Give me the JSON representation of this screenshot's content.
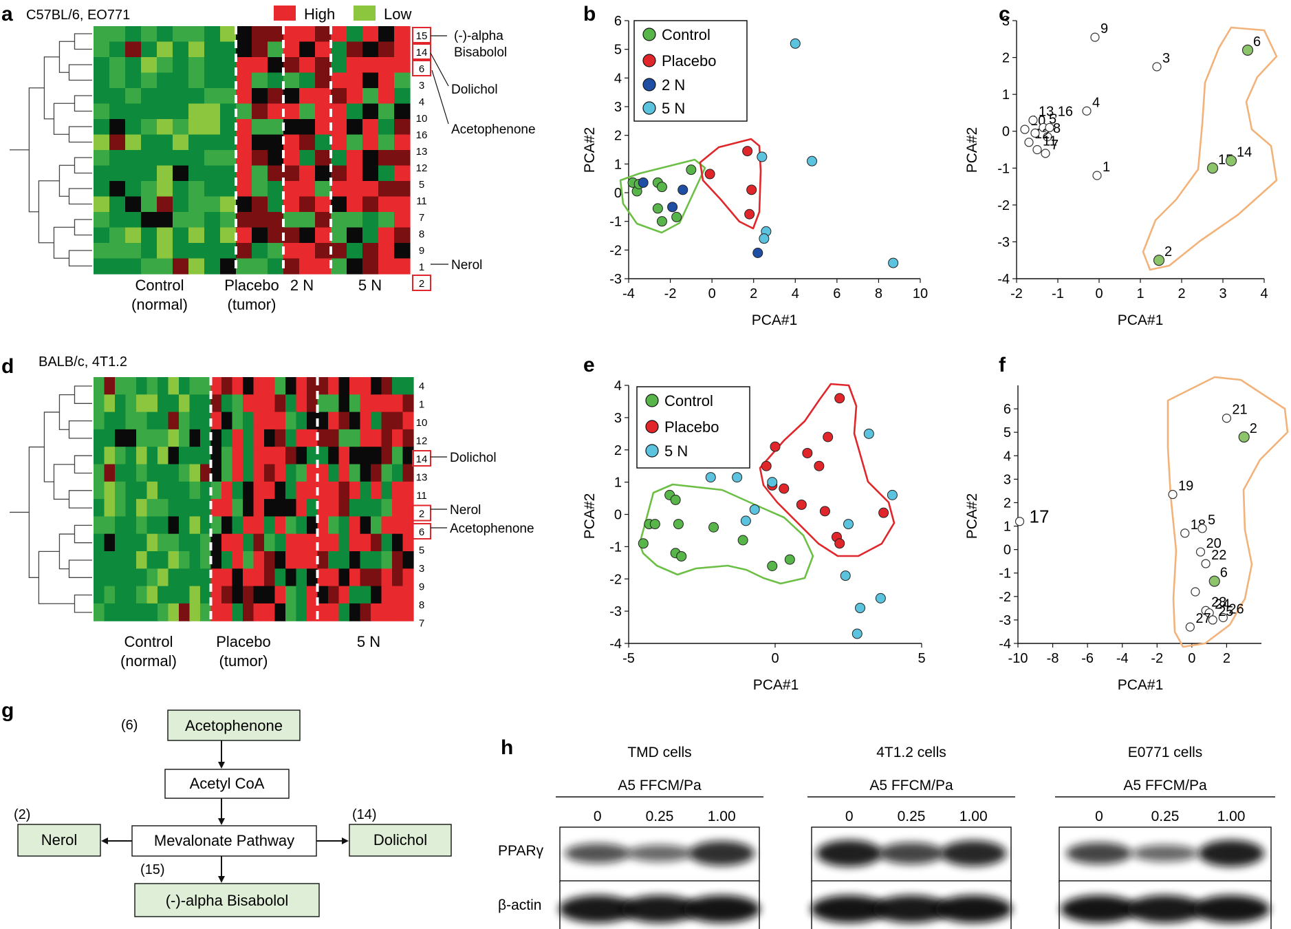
{
  "colors": {
    "high": "#e8292d",
    "low": "#8cc63f",
    "dark_green": "#0e8a3c",
    "mid_green": "#3aa845",
    "dark_red": "#7a1012",
    "black": "#0a0a0a",
    "control": "#58b54a",
    "placebo": "#e0262a",
    "n2": "#1e4fa5",
    "n5": "#5cc3df",
    "control_hull": "#6cbf45",
    "placebo_hull": "#e0262a",
    "orange_hull": "#f2b27a",
    "marked_point": "#8cc46a",
    "box_fill": "#dfeed6"
  },
  "panels": {
    "a": {
      "label": "a",
      "title": "C57BL/6, EO771",
      "legend_high": "High",
      "legend_low": "Low",
      "row_labels": [
        "15",
        "14",
        "6",
        "3",
        "4",
        "10",
        "16",
        "13",
        "12",
        "5",
        "11",
        "7",
        "8",
        "9",
        "1",
        "2"
      ],
      "boxed_rows": [
        "15",
        "14",
        "6",
        "2"
      ],
      "callouts": [
        "(-)-alpha",
        "Bisabolol",
        "Dolichol",
        "Acetophenone",
        "Nerol"
      ],
      "groups": [
        {
          "line1": "Control",
          "line2": "(normal)"
        },
        {
          "line1": "Placebo",
          "line2": "(tumor)"
        },
        {
          "line1": "2 N",
          "line2": ""
        },
        {
          "line1": "5 N",
          "line2": ""
        }
      ]
    },
    "b": {
      "label": "b",
      "legend": [
        "Control",
        "Placebo",
        "2 N",
        "5 N"
      ]
    },
    "c": {
      "label": "c"
    },
    "d": {
      "label": "d",
      "title": "BALB/c, 4T1.2",
      "row_labels": [
        "4",
        "1",
        "10",
        "12",
        "14",
        "13",
        "11",
        "2",
        "6",
        "5",
        "3",
        "9",
        "8",
        "7"
      ],
      "boxed_rows": [
        "14",
        "2",
        "6"
      ],
      "callouts": [
        "Dolichol",
        "Nerol",
        "Acetophenone"
      ],
      "groups": [
        {
          "line1": "Control",
          "line2": "(normal)"
        },
        {
          "line1": "Placebo",
          "line2": "(tumor)"
        },
        {
          "line1": "5 N",
          "line2": ""
        }
      ]
    },
    "e": {
      "label": "e",
      "legend": [
        "Control",
        "Placebo",
        "5 N"
      ]
    },
    "f": {
      "label": "f"
    },
    "g": {
      "label": "g",
      "nodes": {
        "acetophenone": "Acetophenone",
        "acetyl_coa": "Acetyl CoA",
        "mevalonate": "Mevalonate Pathway",
        "nerol": "Nerol",
        "dolichol": "Dolichol",
        "bisabolol": "(-)-alpha Bisabolol"
      },
      "numbers": {
        "acetophenone": "(6)",
        "nerol": "(2)",
        "dolichol": "(14)",
        "bisabolol": "(15)"
      }
    },
    "h": {
      "label": "h",
      "treatment": "A5 FFCM/Pa",
      "doses": [
        "0",
        "0.25",
        "1.00"
      ],
      "blots": [
        {
          "cell": "TMD cells",
          "ppar": [
            0.6,
            0.45,
            0.85
          ],
          "actin": [
            0.95,
            0.95,
            0.97
          ]
        },
        {
          "cell": "4T1.2 cells",
          "ppar": [
            0.95,
            0.7,
            0.9
          ],
          "actin": [
            0.97,
            0.95,
            0.97
          ]
        },
        {
          "cell": "E0771 cells",
          "ppar": [
            0.7,
            0.45,
            0.95
          ],
          "actin": [
            0.97,
            0.95,
            0.97
          ]
        }
      ],
      "row_labels": [
        "PPARγ",
        "β-actin"
      ]
    }
  },
  "chart_data": [
    {
      "panel": "a",
      "type": "heatmap",
      "title": "C57BL/6, EO771",
      "rows": [
        "15",
        "14",
        "6",
        "3",
        "4",
        "10",
        "16",
        "13",
        "12",
        "5",
        "11",
        "7",
        "8",
        "9",
        "1",
        "2"
      ],
      "group_columns": {
        "Control (normal)": 9,
        "Placebo (tumor)": 3,
        "2 N": 3,
        "5 N": 5
      },
      "scale": [
        "High",
        "Low"
      ]
    },
    {
      "panel": "b",
      "type": "scatter",
      "xlabel": "PCA#1",
      "ylabel": "PCA#2",
      "xlim": [
        -4,
        10
      ],
      "ylim": [
        -3,
        6
      ],
      "xticks": [
        -4,
        -2,
        0,
        2,
        4,
        6,
        8,
        10
      ],
      "yticks": [
        -3,
        -2,
        -1,
        0,
        1,
        2,
        3,
        4,
        5,
        6
      ],
      "series": [
        {
          "name": "Control",
          "points": [
            [
              -3.8,
              0.35
            ],
            [
              -3.6,
              0.05
            ],
            [
              -3.5,
              0.3
            ],
            [
              -2.6,
              0.35
            ],
            [
              -2.4,
              0.2
            ],
            [
              -2.6,
              -0.55
            ],
            [
              -2.4,
              -1.0
            ],
            [
              -1.7,
              -0.85
            ],
            [
              -1.0,
              0.8
            ]
          ]
        },
        {
          "name": "Placebo",
          "points": [
            [
              -0.1,
              0.65
            ],
            [
              1.7,
              1.45
            ],
            [
              1.9,
              0.1
            ],
            [
              1.8,
              -0.75
            ]
          ]
        },
        {
          "name": "2 N",
          "points": [
            [
              -3.3,
              0.35
            ],
            [
              -1.9,
              -0.5
            ],
            [
              -1.4,
              0.1
            ],
            [
              2.2,
              -2.1
            ]
          ]
        },
        {
          "name": "5 N",
          "points": [
            [
              4.0,
              5.2
            ],
            [
              2.4,
              1.25
            ],
            [
              4.8,
              1.1
            ],
            [
              2.6,
              -1.35
            ],
            [
              2.5,
              -1.6
            ],
            [
              8.7,
              -2.45
            ]
          ]
        }
      ]
    },
    {
      "panel": "c",
      "type": "scatter",
      "xlabel": "PCA#1",
      "ylabel": "PCA#2",
      "xlim": [
        -2,
        4
      ],
      "ylim": [
        -4,
        3
      ],
      "xticks": [
        -2,
        -1,
        0,
        1,
        2,
        3,
        4
      ],
      "yticks": [
        -4,
        -3,
        -2,
        -1,
        0,
        1,
        2,
        3
      ],
      "points": [
        {
          "label": "9",
          "x": -0.1,
          "y": 2.55,
          "marked": false
        },
        {
          "label": "3",
          "x": 1.4,
          "y": 1.75,
          "marked": false
        },
        {
          "label": "4",
          "x": -0.3,
          "y": 0.55,
          "marked": false
        },
        {
          "label": "1",
          "x": -0.05,
          "y": -1.2,
          "marked": false
        },
        {
          "label": "10",
          "x": -1.8,
          "y": 0.05,
          "marked": false
        },
        {
          "label": "13,16",
          "x": -1.6,
          "y": 0.3,
          "marked": false
        },
        {
          "label": "5",
          "x": -1.35,
          "y": 0.1,
          "marked": false
        },
        {
          "label": "8",
          "x": -1.25,
          "y": -0.15,
          "marked": false
        },
        {
          "label": "12",
          "x": -1.7,
          "y": -0.3,
          "marked": false
        },
        {
          "label": "11",
          "x": -1.5,
          "y": -0.5,
          "marked": false
        },
        {
          "label": "7",
          "x": -1.3,
          "y": -0.6,
          "marked": false
        },
        {
          "label": "",
          "x": -1.2,
          "y": 0.1,
          "marked": false
        },
        {
          "label": "",
          "x": -1.55,
          "y": -0.05,
          "marked": false
        },
        {
          "label": "6",
          "x": 3.6,
          "y": 2.2,
          "marked": true
        },
        {
          "label": "15",
          "x": 2.75,
          "y": -1.0,
          "marked": true
        },
        {
          "label": "14",
          "x": 3.2,
          "y": -0.8,
          "marked": true
        },
        {
          "label": "2",
          "x": 1.45,
          "y": -3.5,
          "marked": true
        }
      ]
    },
    {
      "panel": "d",
      "type": "heatmap",
      "title": "BALB/c, 4T1.2",
      "rows": [
        "4",
        "1",
        "10",
        "12",
        "14",
        "13",
        "11",
        "2",
        "6",
        "5",
        "3",
        "9",
        "8",
        "7"
      ],
      "group_columns": {
        "Control (normal)": 11,
        "Placebo (tumor)": 10,
        "5 N": 9
      },
      "scale": [
        "High",
        "Low"
      ]
    },
    {
      "panel": "e",
      "type": "scatter",
      "xlabel": "PCA#1",
      "ylabel": "PCA#2",
      "xlim": [
        -5,
        5
      ],
      "ylim": [
        -4,
        4
      ],
      "xticks": [
        -5,
        0,
        5
      ],
      "yticks": [
        -4,
        -3,
        -2,
        -1,
        0,
        1,
        2,
        3,
        4
      ],
      "series": [
        {
          "name": "Control",
          "points": [
            [
              -4.5,
              -0.9
            ],
            [
              -4.3,
              -0.3
            ],
            [
              -4.1,
              -0.3
            ],
            [
              -3.6,
              0.6
            ],
            [
              -3.4,
              0.45
            ],
            [
              -3.3,
              -0.3
            ],
            [
              -3.4,
              -1.2
            ],
            [
              -3.2,
              -1.3
            ],
            [
              -2.1,
              -0.4
            ],
            [
              -1.1,
              -0.8
            ],
            [
              -0.1,
              -1.6
            ],
            [
              0.5,
              -1.4
            ]
          ]
        },
        {
          "name": "Placebo",
          "points": [
            [
              2.2,
              3.6
            ],
            [
              1.8,
              2.4
            ],
            [
              0.0,
              2.1
            ],
            [
              1.1,
              1.9
            ],
            [
              -0.3,
              1.5
            ],
            [
              1.5,
              1.5
            ],
            [
              -0.1,
              0.9
            ],
            [
              0.3,
              0.8
            ],
            [
              0.9,
              0.3
            ],
            [
              1.7,
              0.1
            ],
            [
              2.1,
              -0.7
            ],
            [
              2.2,
              -0.9
            ],
            [
              3.7,
              0.05
            ]
          ]
        },
        {
          "name": "5 N",
          "points": [
            [
              -2.2,
              1.15
            ],
            [
              -1.3,
              1.15
            ],
            [
              -0.7,
              0.15
            ],
            [
              -1.0,
              -0.2
            ],
            [
              -0.1,
              1.0
            ],
            [
              3.2,
              2.5
            ],
            [
              4.0,
              0.6
            ],
            [
              2.5,
              -0.3
            ],
            [
              2.4,
              -1.9
            ],
            [
              3.6,
              -2.6
            ],
            [
              2.9,
              -2.9
            ],
            [
              2.8,
              -3.7
            ]
          ]
        }
      ]
    },
    {
      "panel": "f",
      "type": "scatter",
      "xlabel": "PCA#1",
      "ylabel": "PCA#2",
      "xlim": [
        -10,
        4
      ],
      "ylim": [
        -4,
        7
      ],
      "xticks": [
        -10,
        -8,
        -6,
        -4,
        -2,
        0,
        2
      ],
      "yticks": [
        -4,
        -3,
        -2,
        -1,
        0,
        1,
        2,
        3,
        4,
        5,
        6
      ],
      "points": [
        {
          "label": "21",
          "x": 2.0,
          "y": 5.6,
          "marked": false
        },
        {
          "label": "2",
          "x": 3.0,
          "y": 4.8,
          "marked": true
        },
        {
          "label": "19",
          "x": -1.1,
          "y": 2.35,
          "marked": false
        },
        {
          "label": "17",
          "x": -9.9,
          "y": 1.2,
          "marked": false
        },
        {
          "label": "18",
          "x": -0.4,
          "y": 0.7,
          "marked": false
        },
        {
          "label": "5",
          "x": 0.6,
          "y": 0.9,
          "marked": false
        },
        {
          "label": "20",
          "x": 0.5,
          "y": -0.1,
          "marked": false
        },
        {
          "label": "22",
          "x": 0.8,
          "y": -0.6,
          "marked": false
        },
        {
          "label": "6",
          "x": 1.3,
          "y": -1.35,
          "marked": true
        },
        {
          "label": "",
          "x": 0.2,
          "y": -1.8,
          "marked": false
        },
        {
          "label": "23",
          "x": 0.8,
          "y": -2.6,
          "marked": false
        },
        {
          "label": "24",
          "x": 1.0,
          "y": -2.7,
          "marked": false
        },
        {
          "label": "26",
          "x": 1.8,
          "y": -2.9,
          "marked": false
        },
        {
          "label": "25",
          "x": 1.2,
          "y": -3.0,
          "marked": false
        },
        {
          "label": "27",
          "x": -0.1,
          "y": -3.3,
          "marked": false
        }
      ]
    }
  ]
}
